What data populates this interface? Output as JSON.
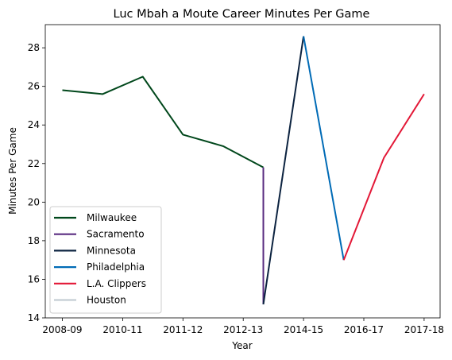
{
  "chart_data": {
    "type": "line",
    "title": "Luc Mbah a Moute Career Minutes Per Game",
    "xlabel": "Year",
    "ylabel": "Minutes Per Game",
    "x_ticks": [
      "2008-09",
      "2010-11",
      "2011-12",
      "2012-13",
      "2014-15",
      "2016-17",
      "2017-18"
    ],
    "ylim": [
      14,
      29.2
    ],
    "y_ticks": [
      14,
      16,
      18,
      20,
      22,
      24,
      26,
      28
    ],
    "grid": false,
    "legend_position": "lower-left",
    "series": [
      {
        "name": "Milwaukee",
        "color": "#00471B",
        "points": [
          [
            0,
            25.8
          ],
          [
            1,
            25.6
          ],
          [
            2,
            26.5
          ],
          [
            3,
            23.5
          ],
          [
            4,
            22.9
          ],
          [
            5,
            21.8
          ]
        ]
      },
      {
        "name": "Sacramento",
        "color": "#5A2D81",
        "points": [
          [
            5,
            21.8
          ],
          [
            5,
            14.7
          ]
        ]
      },
      {
        "name": "Minnesota",
        "color": "#0C2340",
        "points": [
          [
            5,
            14.7
          ],
          [
            6,
            28.6
          ]
        ]
      },
      {
        "name": "Philadelphia",
        "color": "#006BB6",
        "points": [
          [
            6,
            28.6
          ],
          [
            7,
            17.0
          ]
        ]
      },
      {
        "name": "L.A. Clippers",
        "color": "#E31837",
        "points": [
          [
            7,
            17.0
          ],
          [
            8,
            22.3
          ],
          [
            9,
            25.6
          ]
        ]
      },
      {
        "name": "Houston",
        "color": "#C4CED4",
        "points": []
      }
    ]
  }
}
